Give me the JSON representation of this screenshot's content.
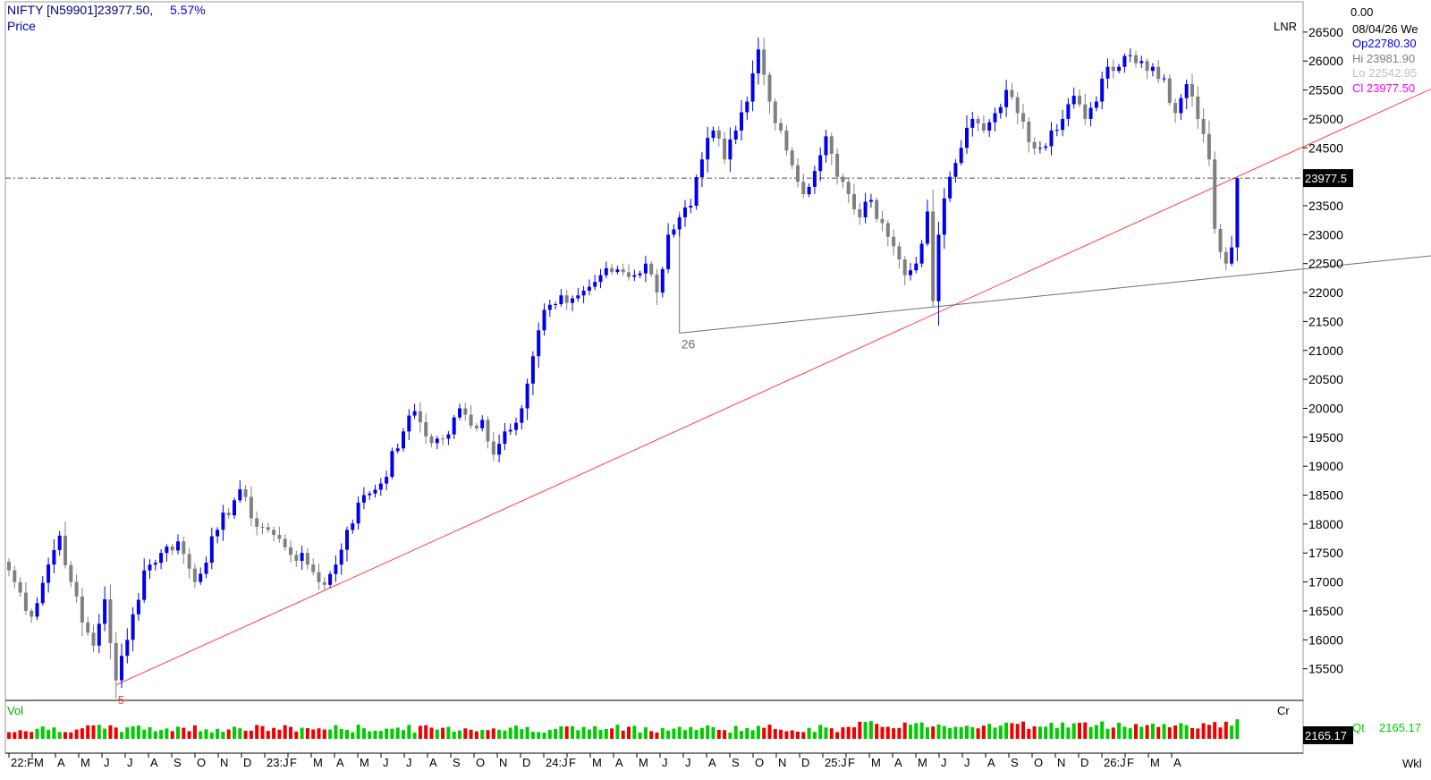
{
  "header": {
    "symbol_line": "NIFTY [N59901]23977.50,",
    "change_pct": "5.57%",
    "price_label": "Price",
    "scale_label": "LNR"
  },
  "info_panel": {
    "value_top": "0.00",
    "date": "08/04/26 We",
    "open": "Op22780.30",
    "high": "Hi 23981.90",
    "low": "Lo 22542.95",
    "close": "Cl  23977.50"
  },
  "price_tag": "23977.5",
  "volume_panel": {
    "label": "Vol",
    "unit": "Cr",
    "tag": "2165.17",
    "qty_label": "Qt",
    "qty_value": "2165.17"
  },
  "period_label": "Wkl",
  "annotations": {
    "low_label": "5",
    "pivot_label": "26"
  },
  "colors": {
    "up_candle": "#0000ee",
    "down_candle": "#808080",
    "trendline_red": "#ff4040",
    "trendline_grey": "#707070",
    "vol_up": "#00cc00",
    "vol_down": "#ee0000",
    "header_text": "#000080",
    "change_text": "#0000ff",
    "close_text": "#ff00ff"
  },
  "chart_data": {
    "type": "candlestick",
    "timeframe": "weekly",
    "ylim": [
      15000,
      26900
    ],
    "y_ticks": [
      15500,
      16000,
      16500,
      17000,
      17500,
      18000,
      18500,
      19000,
      19500,
      20000,
      20500,
      21000,
      21500,
      22000,
      22500,
      23000,
      23500,
      24000,
      24500,
      25000,
      25500,
      26000,
      26500
    ],
    "x_labels": [
      "22:F",
      "M",
      "A",
      "M",
      "J",
      "J",
      "A",
      "S",
      "O",
      "N",
      "D",
      "23:J",
      "F",
      "M",
      "A",
      "M",
      "J",
      "J",
      "A",
      "S",
      "O",
      "N",
      "D",
      "24:J",
      "F",
      "M",
      "A",
      "M",
      "J",
      "J",
      "A",
      "S",
      "O",
      "N",
      "D",
      "25:J",
      "F",
      "M",
      "A",
      "M",
      "J",
      "J",
      "A",
      "S",
      "O",
      "N",
      "D",
      "26:J",
      "F",
      "M",
      "A"
    ],
    "current_price": 23977.5,
    "anchors": [
      {
        "week": 0,
        "close": 17200
      },
      {
        "week": 4,
        "close": 16400
      },
      {
        "week": 7,
        "close": 17300
      },
      {
        "week": 9,
        "close": 17800
      },
      {
        "week": 11,
        "close": 17000
      },
      {
        "week": 13,
        "close": 16300
      },
      {
        "week": 15,
        "close": 15900
      },
      {
        "week": 17,
        "close": 16700
      },
      {
        "week": 19,
        "close": 15300
      },
      {
        "week": 21,
        "close": 16000
      },
      {
        "week": 24,
        "close": 17200
      },
      {
        "week": 27,
        "close": 17500
      },
      {
        "week": 30,
        "close": 17700
      },
      {
        "week": 33,
        "close": 17000
      },
      {
        "week": 37,
        "close": 17900
      },
      {
        "week": 41,
        "close": 18600
      },
      {
        "week": 43,
        "close": 18100
      },
      {
        "week": 46,
        "close": 17900
      },
      {
        "week": 49,
        "close": 17600
      },
      {
        "week": 53,
        "close": 17300
      },
      {
        "week": 56,
        "close": 16950
      },
      {
        "week": 58,
        "close": 17300
      },
      {
        "week": 60,
        "close": 17900
      },
      {
        "week": 63,
        "close": 18500
      },
      {
        "week": 66,
        "close": 18700
      },
      {
        "week": 70,
        "close": 19600
      },
      {
        "week": 72,
        "close": 19950
      },
      {
        "week": 75,
        "close": 19400
      },
      {
        "week": 78,
        "close": 19550
      },
      {
        "week": 80,
        "close": 20000
      },
      {
        "week": 82,
        "close": 19700
      },
      {
        "week": 84,
        "close": 19800
      },
      {
        "week": 86,
        "close": 19200
      },
      {
        "week": 88,
        "close": 19600
      },
      {
        "week": 91,
        "close": 20000
      },
      {
        "week": 93,
        "close": 20900
      },
      {
        "week": 95,
        "close": 21700
      },
      {
        "week": 97,
        "close": 21800
      },
      {
        "week": 100,
        "close": 21900
      },
      {
        "week": 103,
        "close": 22100
      },
      {
        "week": 105,
        "close": 22300
      },
      {
        "week": 108,
        "close": 22400
      },
      {
        "week": 111,
        "close": 22300
      },
      {
        "week": 113,
        "close": 22500
      },
      {
        "week": 115,
        "close": 22000
      },
      {
        "week": 117,
        "close": 23000
      },
      {
        "week": 119,
        "close": 23300
      },
      {
        "week": 121,
        "close": 23500
      },
      {
        "week": 123,
        "close": 24300
      },
      {
        "week": 125,
        "close": 24800
      },
      {
        "week": 127,
        "close": 24300
      },
      {
        "week": 129,
        "close": 24800
      },
      {
        "week": 131,
        "close": 25300
      },
      {
        "week": 133,
        "close": 26200
      },
      {
        "week": 135,
        "close": 25300
      },
      {
        "week": 137,
        "close": 24800
      },
      {
        "week": 139,
        "close": 24200
      },
      {
        "week": 141,
        "close": 23700
      },
      {
        "week": 143,
        "close": 24100
      },
      {
        "week": 145,
        "close": 24700
      },
      {
        "week": 147,
        "close": 24000
      },
      {
        "week": 149,
        "close": 23700
      },
      {
        "week": 151,
        "close": 23300
      },
      {
        "week": 153,
        "close": 23600
      },
      {
        "week": 155,
        "close": 23200
      },
      {
        "week": 157,
        "close": 22800
      },
      {
        "week": 159,
        "close": 22300
      },
      {
        "week": 161,
        "close": 22500
      },
      {
        "week": 163,
        "close": 23400
      },
      {
        "week": 164,
        "close": 21850
      },
      {
        "week": 165,
        "close": 23000
      },
      {
        "week": 167,
        "close": 24000
      },
      {
        "week": 169,
        "close": 24500
      },
      {
        "week": 171,
        "close": 25000
      },
      {
        "week": 173,
        "close": 24800
      },
      {
        "week": 175,
        "close": 25100
      },
      {
        "week": 177,
        "close": 25500
      },
      {
        "week": 179,
        "close": 25100
      },
      {
        "week": 181,
        "close": 24600
      },
      {
        "week": 183,
        "close": 24500
      },
      {
        "week": 185,
        "close": 24800
      },
      {
        "week": 187,
        "close": 25000
      },
      {
        "week": 189,
        "close": 25400
      },
      {
        "week": 191,
        "close": 25000
      },
      {
        "week": 193,
        "close": 25300
      },
      {
        "week": 195,
        "close": 25900
      },
      {
        "week": 197,
        "close": 25900
      },
      {
        "week": 199,
        "close": 26100
      },
      {
        "week": 201,
        "close": 26000
      },
      {
        "week": 203,
        "close": 25900
      },
      {
        "week": 205,
        "close": 25700
      },
      {
        "week": 207,
        "close": 25100
      },
      {
        "week": 209,
        "close": 25600
      },
      {
        "week": 211,
        "close": 25000
      },
      {
        "week": 213,
        "close": 24300
      },
      {
        "week": 214,
        "close": 23100
      },
      {
        "week": 215,
        "close": 22700
      },
      {
        "week": 216,
        "close": 22500
      },
      {
        "week": 217,
        "close": 22780
      },
      {
        "week": 218,
        "close": 23977.5
      }
    ],
    "last_candle": {
      "open": 22780.3,
      "high": 23981.9,
      "low": 22542.95,
      "close": 23977.5
    },
    "trendlines": [
      {
        "name": "red-support",
        "from": {
          "week": 19,
          "price": 15220
        },
        "to": {
          "week": 218,
          "price": 24000
        },
        "extended": true
      },
      {
        "name": "grey-support",
        "from": {
          "week": 119,
          "price": 21300
        },
        "to": {
          "week": 164,
          "price": 21750
        },
        "extended": true
      }
    ],
    "volume_last": 2165.17
  }
}
